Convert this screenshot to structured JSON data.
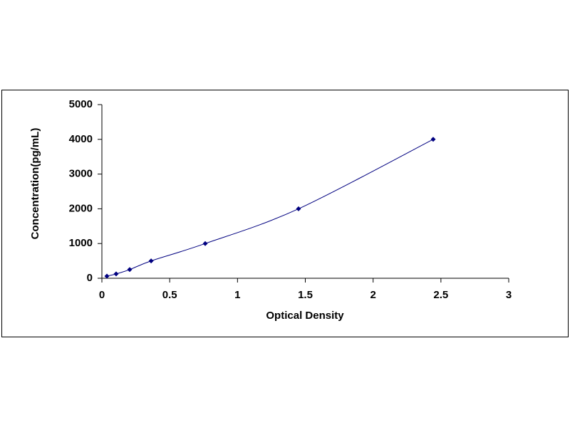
{
  "chart_data": {
    "type": "scatter",
    "x_label": "Optical Density",
    "y_label": "Concentration(pg/mL)",
    "series": [
      {
        "color": "#000080",
        "x": [
          0.037,
          0.105,
          0.205,
          0.363,
          0.762,
          1.45,
          2.443
        ],
        "values": [
          62.5,
          125,
          250,
          500,
          1000,
          2000,
          4000
        ]
      }
    ],
    "smooth_line": true,
    "xlim": [
      0,
      3
    ],
    "xticks": [
      0,
      0.5,
      1,
      1.5,
      2,
      2.5,
      3
    ],
    "ylim": [
      0,
      5000
    ],
    "yticks": [
      0,
      1000,
      2000,
      3000,
      4000,
      5000
    ],
    "grid": false
  }
}
